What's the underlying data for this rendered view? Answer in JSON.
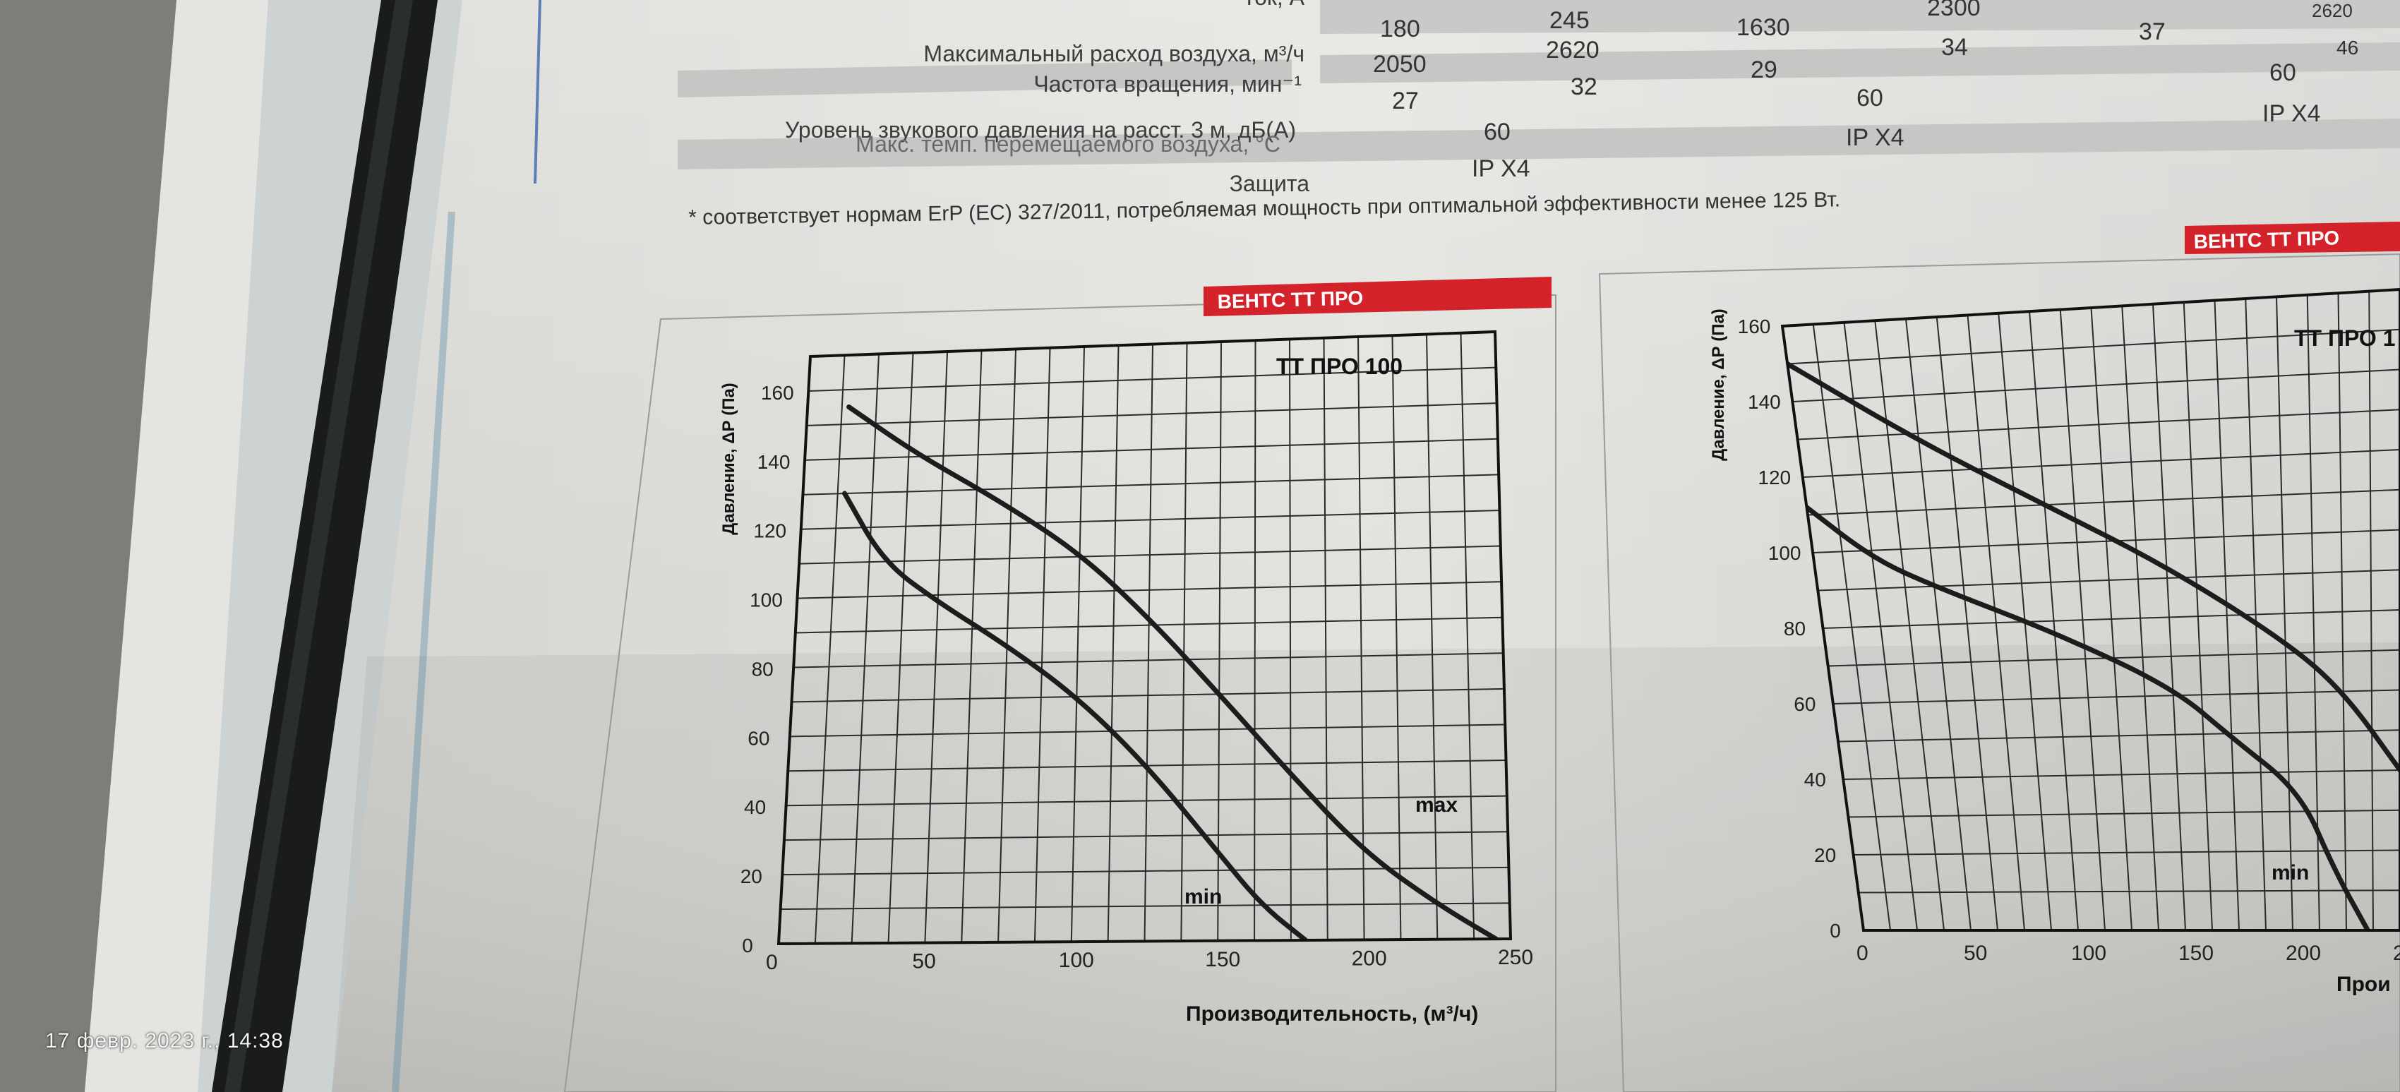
{
  "timestamp": "17 февр. 2023 г., 14:38",
  "table": {
    "rows": [
      {
        "label": "Ток, А",
        "values": []
      },
      {
        "label": "Максимальный расход воздуха, м³/ч",
        "values": [
          "180",
          "245",
          "1630",
          "2300",
          "37",
          "2620"
        ]
      },
      {
        "label": "Частота вращения,  мин⁻¹",
        "values": [
          "2050",
          "2620",
          "29",
          "34",
          "60"
        ]
      },
      {
        "label": "Уровень звукового давления на расст. 3 м, дБ(А)",
        "values": [
          "27",
          "32",
          "60"
        ]
      },
      {
        "label": "Макс. темп. перемещаемого воздуха, °C",
        "values": [
          "60",
          "IP X4",
          "IP X4"
        ]
      },
      {
        "label": "Защита",
        "values": [
          "IP X4"
        ]
      }
    ],
    "extra_values": [
      "46"
    ],
    "footnote": "* соответствует нормам ErP (EC) 327/2011, потребляемая мощность при оптимальной эффективности менее 125 Вт."
  },
  "colors": {
    "brand": "#d3222a",
    "curve": "#1c1c1c",
    "grid": "#2a2a2a"
  },
  "chart_data": [
    {
      "type": "line",
      "brand_label": "ВЕНТС ТТ ПРО",
      "title": "ТТ ПРО 100",
      "xlabel": "Производительность, (м³/ч)",
      "ylabel": "Давление, ΔР (Па)",
      "xlim": [
        0,
        250
      ],
      "ylim": [
        0,
        170
      ],
      "x_ticks": [
        0,
        50,
        100,
        150,
        200,
        250
      ],
      "y_ticks": [
        0,
        20,
        40,
        60,
        80,
        100,
        120,
        140,
        160
      ],
      "grid": true,
      "series": [
        {
          "name": "max",
          "points": [
            [
              15,
              155
            ],
            [
              40,
              141
            ],
            [
              70,
              127
            ],
            [
              100,
              111
            ],
            [
              125,
              92
            ],
            [
              150,
              70
            ],
            [
              175,
              47
            ],
            [
              200,
              25
            ],
            [
              225,
              10
            ],
            [
              245,
              0
            ]
          ]
        },
        {
          "name": "min",
          "points": [
            [
              15,
              130
            ],
            [
              30,
              110
            ],
            [
              50,
              98
            ],
            [
              75,
              85
            ],
            [
              100,
              70
            ],
            [
              125,
              50
            ],
            [
              150,
              25
            ],
            [
              165,
              10
            ],
            [
              180,
              0
            ]
          ]
        }
      ]
    },
    {
      "type": "line",
      "brand_label": "ВЕНТС ТТ ПРО",
      "title": "ТТ ПРО 1",
      "xlabel": "Прои",
      "ylabel": "Давление, ΔР (Па)",
      "xlim": [
        0,
        250
      ],
      "ylim": [
        0,
        160
      ],
      "x_ticks": [
        0,
        50,
        100,
        150,
        200,
        250
      ],
      "y_ticks": [
        0,
        20,
        40,
        60,
        80,
        100,
        120,
        140,
        160
      ],
      "grid": true,
      "series": [
        {
          "name": "",
          "points": [
            [
              0,
              150
            ],
            [
              50,
              128
            ],
            [
              100,
              110
            ],
            [
              150,
              93
            ],
            [
              200,
              73
            ],
            [
              225,
              60
            ],
            [
              250,
              40
            ]
          ]
        },
        {
          "name": "min",
          "points": [
            [
              0,
              112
            ],
            [
              25,
              98
            ],
            [
              50,
              90
            ],
            [
              100,
              77
            ],
            [
              150,
              62
            ],
            [
              175,
              49
            ],
            [
              205,
              35
            ],
            [
              220,
              15
            ],
            [
              235,
              0
            ]
          ]
        }
      ]
    }
  ]
}
